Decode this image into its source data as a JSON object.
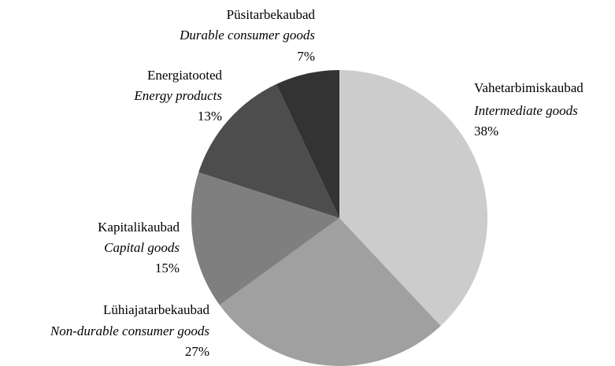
{
  "chart_data": {
    "type": "pie",
    "categories": [
      "Vahetarbimiskaubad",
      "Lühiajatarbekaubad",
      "Kapitalikaubad",
      "Energiatooted",
      "Püsitarbekaubad"
    ],
    "subcategories": [
      "Intermediate goods",
      "Non-durable consumer goods",
      "Capital goods",
      "Energy products",
      "Durable consumer goods"
    ],
    "values": [
      38,
      27,
      15,
      13,
      7
    ],
    "value_labels": [
      "38%",
      "27%",
      "15%",
      "13%",
      "7%"
    ],
    "colors": [
      "#cccccc",
      "#a0a0a0",
      "#7f7f7f",
      "#4d4d4d",
      "#333333"
    ]
  }
}
